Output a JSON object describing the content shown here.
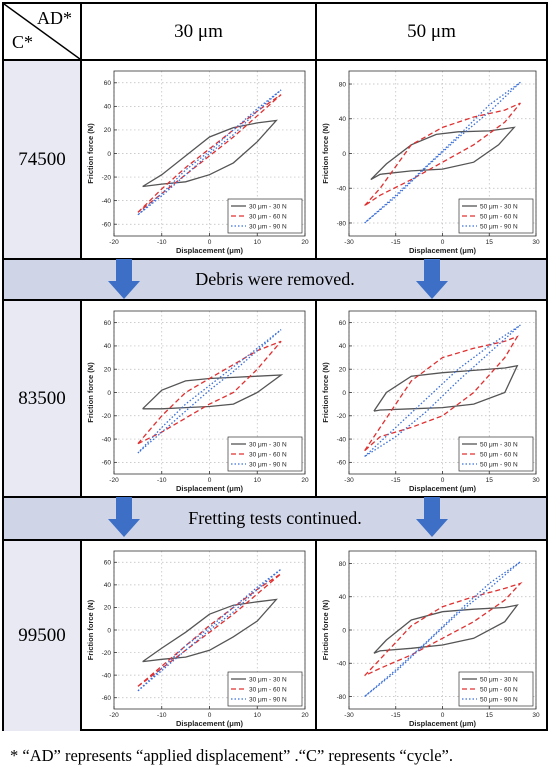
{
  "table": {
    "corner_ad": "AD*",
    "corner_c": "C*",
    "col_headers": [
      "30 μm",
      "50 μm"
    ],
    "row_labels": [
      "74500",
      "83500",
      "99500"
    ],
    "bands": [
      "Debris were removed.",
      "Fretting tests continued."
    ]
  },
  "footnote": "* “AD” represents “applied displacement” .“C” represents “cycle”.",
  "colors": {
    "s1": "#555555",
    "s2": "#e03030",
    "s3": "#3a6fd8",
    "arrow": "#3d6fc6",
    "band": "#cfd4e6",
    "rowlab": "#e8e9f3"
  },
  "chart_data": [
    {
      "type": "line",
      "cycle": "74500",
      "ylabel": "Friction force (N)",
      "xlabel": "Displacement (μm)",
      "xlim": [
        -20,
        20
      ],
      "ylim": [
        -70,
        70
      ],
      "xticks": [
        -20,
        -10,
        0,
        10,
        20
      ],
      "yticks": [
        -60,
        -40,
        -20,
        0,
        20,
        40,
        60
      ],
      "series": [
        {
          "name": "30 μm - 30 N",
          "style": "solid",
          "color": "#555555",
          "x": [
            -14,
            -10,
            -5,
            0,
            5,
            10,
            14,
            14,
            10,
            5,
            0,
            -5,
            -10,
            -14
          ],
          "y": [
            -28,
            -18,
            -2,
            14,
            22,
            26,
            28,
            28,
            10,
            -8,
            -18,
            -24,
            -26,
            -28
          ]
        },
        {
          "name": "30 μm - 60 N",
          "style": "dashed",
          "color": "#e03030",
          "x": [
            -15,
            -10,
            -5,
            0,
            5,
            10,
            15,
            15,
            10,
            5,
            0,
            -5,
            -10,
            -15
          ],
          "y": [
            -50,
            -30,
            -12,
            4,
            20,
            36,
            50,
            50,
            32,
            14,
            -2,
            -18,
            -34,
            -50
          ]
        },
        {
          "name": "30 μm - 90 N",
          "style": "dotted",
          "color": "#3a6fd8",
          "x": [
            -15,
            -10,
            -5,
            0,
            5,
            10,
            15,
            15,
            10,
            5,
            0,
            -5,
            -10,
            -15
          ],
          "y": [
            -52,
            -34,
            -14,
            2,
            20,
            38,
            54,
            54,
            36,
            16,
            0,
            -18,
            -36,
            -52
          ]
        }
      ]
    },
    {
      "type": "line",
      "cycle": "74500",
      "ylabel": "Friction force (N)",
      "xlabel": "Displacement (μm)",
      "xlim": [
        -30,
        30
      ],
      "ylim": [
        -95,
        95
      ],
      "xticks": [
        -30,
        -15,
        0,
        15,
        30
      ],
      "yticks": [
        -80,
        -40,
        0,
        40,
        80
      ],
      "series": [
        {
          "name": "50 μm - 30 N",
          "style": "solid",
          "color": "#555555",
          "x": [
            -23,
            -18,
            -10,
            -2,
            5,
            15,
            23,
            23,
            18,
            10,
            0,
            -10,
            -20,
            -23
          ],
          "y": [
            -30,
            -12,
            10,
            22,
            25,
            26,
            30,
            30,
            10,
            -10,
            -18,
            -20,
            -24,
            -30
          ]
        },
        {
          "name": "50 μm - 60 N",
          "style": "dashed",
          "color": "#e03030",
          "x": [
            -25,
            -20,
            -10,
            0,
            10,
            20,
            25,
            25,
            20,
            10,
            0,
            -10,
            -20,
            -25
          ],
          "y": [
            -60,
            -40,
            10,
            30,
            42,
            50,
            58,
            58,
            36,
            10,
            -10,
            -30,
            -48,
            -60
          ]
        },
        {
          "name": "50 μm - 90 N",
          "style": "dotted",
          "color": "#3a6fd8",
          "x": [
            -25,
            -15,
            -5,
            5,
            15,
            25,
            25,
            15,
            5,
            -5,
            -15,
            -25
          ],
          "y": [
            -80,
            -50,
            -15,
            18,
            48,
            82,
            82,
            56,
            20,
            -14,
            -48,
            -80
          ]
        }
      ]
    },
    {
      "type": "line",
      "cycle": "83500",
      "ylabel": "Friction force (N)",
      "xlabel": "Displacement (μm)",
      "xlim": [
        -20,
        20
      ],
      "ylim": [
        -70,
        70
      ],
      "xticks": [
        -20,
        -10,
        0,
        10,
        20
      ],
      "yticks": [
        -60,
        -40,
        -20,
        0,
        20,
        40,
        60
      ],
      "series": [
        {
          "name": "30 μm - 30 N",
          "style": "solid",
          "color": "#555555",
          "x": [
            -14,
            -10,
            -5,
            0,
            5,
            10,
            15,
            15,
            10,
            5,
            0,
            -5,
            -10,
            -14
          ],
          "y": [
            -14,
            2,
            10,
            12,
            13,
            14,
            15,
            15,
            0,
            -10,
            -12,
            -13,
            -14,
            -14
          ]
        },
        {
          "name": "30 μm - 60 N",
          "style": "dashed",
          "color": "#e03030",
          "x": [
            -15,
            -10,
            -5,
            0,
            5,
            10,
            15,
            15,
            10,
            5,
            0,
            -5,
            -10,
            -15
          ],
          "y": [
            -44,
            -20,
            0,
            12,
            24,
            36,
            44,
            44,
            20,
            0,
            -10,
            -22,
            -34,
            -44
          ]
        },
        {
          "name": "30 μm - 90 N",
          "style": "dotted",
          "color": "#3a6fd8",
          "x": [
            -15,
            -10,
            -5,
            0,
            5,
            10,
            15,
            15,
            10,
            5,
            0,
            -5,
            -10,
            -15
          ],
          "y": [
            -52,
            -30,
            -10,
            6,
            22,
            38,
            54,
            54,
            36,
            18,
            2,
            -16,
            -34,
            -52
          ]
        }
      ]
    },
    {
      "type": "line",
      "cycle": "83500",
      "ylabel": "Friction force (N)",
      "xlabel": "Displacement (μm)",
      "xlim": [
        -30,
        30
      ],
      "ylim": [
        -70,
        70
      ],
      "xticks": [
        -30,
        -15,
        0,
        15,
        30
      ],
      "yticks": [
        -60,
        -40,
        -20,
        0,
        20,
        40,
        60
      ],
      "series": [
        {
          "name": "50 μm - 30 N",
          "style": "solid",
          "color": "#555555",
          "x": [
            -22,
            -18,
            -10,
            0,
            10,
            20,
            24,
            24,
            20,
            10,
            0,
            -10,
            -20,
            -22
          ],
          "y": [
            -16,
            0,
            14,
            17,
            19,
            21,
            23,
            23,
            0,
            -10,
            -13,
            -14,
            -15,
            -16
          ]
        },
        {
          "name": "50 μm - 60 N",
          "style": "dashed",
          "color": "#e03030",
          "x": [
            -25,
            -20,
            -10,
            0,
            10,
            20,
            24,
            24,
            20,
            10,
            0,
            -10,
            -20,
            -25
          ],
          "y": [
            -50,
            -30,
            10,
            30,
            38,
            44,
            48,
            48,
            30,
            0,
            -20,
            -30,
            -38,
            -50
          ]
        },
        {
          "name": "50 μm - 90 N",
          "style": "dotted",
          "color": "#3a6fd8",
          "x": [
            -25,
            -15,
            -5,
            5,
            15,
            25,
            25,
            15,
            5,
            -5,
            -15,
            -25
          ],
          "y": [
            -55,
            -30,
            -5,
            20,
            40,
            58,
            58,
            34,
            10,
            -16,
            -38,
            -55
          ]
        }
      ]
    },
    {
      "type": "line",
      "cycle": "99500",
      "ylabel": "Friction force (N)",
      "xlabel": "Displacement (μm)",
      "xlim": [
        -20,
        20
      ],
      "ylim": [
        -70,
        70
      ],
      "xticks": [
        -20,
        -10,
        0,
        10,
        20
      ],
      "yticks": [
        -60,
        -40,
        -20,
        0,
        20,
        40,
        60
      ],
      "series": [
        {
          "name": "30 μm - 30 N",
          "style": "solid",
          "color": "#555555",
          "x": [
            -14,
            -10,
            -5,
            0,
            5,
            10,
            14,
            14,
            10,
            5,
            0,
            -5,
            -10,
            -14
          ],
          "y": [
            -28,
            -16,
            -2,
            14,
            22,
            25,
            27,
            27,
            8,
            -6,
            -18,
            -24,
            -26,
            -28
          ]
        },
        {
          "name": "30 μm - 60 N",
          "style": "dashed",
          "color": "#e03030",
          "x": [
            -15,
            -10,
            -5,
            0,
            5,
            10,
            15,
            15,
            10,
            5,
            0,
            -5,
            -10,
            -15
          ],
          "y": [
            -50,
            -32,
            -14,
            4,
            20,
            36,
            50,
            50,
            32,
            14,
            -2,
            -18,
            -34,
            -50
          ]
        },
        {
          "name": "30 μm - 90 N",
          "style": "dotted",
          "color": "#3a6fd8",
          "x": [
            -15,
            -10,
            -5,
            0,
            5,
            10,
            15,
            15,
            10,
            5,
            0,
            -5,
            -10,
            -15
          ],
          "y": [
            -54,
            -34,
            -14,
            2,
            20,
            38,
            54,
            54,
            36,
            16,
            0,
            -18,
            -36,
            -54
          ]
        }
      ]
    },
    {
      "type": "line",
      "cycle": "99500",
      "ylabel": "Friction force (N)",
      "xlabel": "Displacement (μm)",
      "xlim": [
        -30,
        30
      ],
      "ylim": [
        -95,
        95
      ],
      "xticks": [
        -30,
        -15,
        0,
        15,
        30
      ],
      "yticks": [
        -80,
        -40,
        0,
        40,
        80
      ],
      "series": [
        {
          "name": "50 μm - 30 N",
          "style": "solid",
          "color": "#555555",
          "x": [
            -22,
            -18,
            -10,
            0,
            10,
            20,
            24,
            24,
            20,
            10,
            0,
            -10,
            -20,
            -22
          ],
          "y": [
            -28,
            -12,
            12,
            22,
            25,
            27,
            30,
            30,
            10,
            -10,
            -18,
            -22,
            -25,
            -28
          ]
        },
        {
          "name": "50 μm - 60 N",
          "style": "dashed",
          "color": "#e03030",
          "x": [
            -25,
            -20,
            -10,
            0,
            10,
            20,
            25,
            25,
            20,
            10,
            0,
            -10,
            -20,
            -25
          ],
          "y": [
            -55,
            -35,
            5,
            28,
            40,
            50,
            56,
            56,
            36,
            10,
            -10,
            -30,
            -46,
            -55
          ]
        },
        {
          "name": "50 μm - 90 N",
          "style": "dotted",
          "color": "#3a6fd8",
          "x": [
            -25,
            -15,
            -5,
            5,
            15,
            25,
            25,
            15,
            5,
            -5,
            -15,
            -25
          ],
          "y": [
            -80,
            -50,
            -15,
            20,
            50,
            82,
            82,
            56,
            22,
            -14,
            -48,
            -80
          ]
        }
      ]
    }
  ]
}
